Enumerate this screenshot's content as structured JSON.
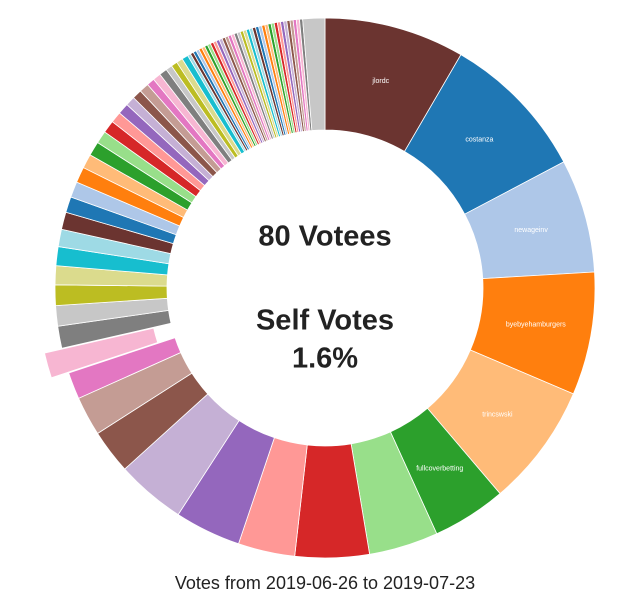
{
  "chart_data": {
    "type": "donut",
    "center_texts": [
      "80 Votees",
      "Self Votes",
      "1.6%"
    ],
    "footer": "Votes from 2019-06-26 to 2019-07-23",
    "exploded_index": 14,
    "colors": [
      "#6b3430",
      "#1f77b4",
      "#aec7e8",
      "#ff7f0e",
      "#ffbb78",
      "#2ca02c",
      "#98df8a",
      "#d62728",
      "#ff9896",
      "#9467bd",
      "#c5b0d5",
      "#8c564b",
      "#c49c94",
      "#e377c2",
      "#f7b6d2",
      "#7f7f7f",
      "#c7c7c7",
      "#bcbd22",
      "#dbdb8d",
      "#17becf",
      "#9edae5"
    ],
    "categories": [
      "jlordc",
      "costanza",
      "newageinv",
      "byebyehamburgers",
      "trincswski",
      "fullcoverbetting",
      null,
      null,
      null,
      null,
      null,
      null,
      null,
      null,
      null,
      null,
      null,
      null,
      null,
      null,
      null,
      null,
      null,
      null,
      null,
      null,
      null,
      null,
      null,
      null,
      null,
      null,
      null,
      null,
      null,
      null,
      null,
      null,
      null,
      null,
      null,
      null,
      null,
      null,
      null,
      null,
      null,
      null,
      null,
      null,
      null,
      null,
      null,
      null,
      null,
      null,
      null,
      null,
      null,
      null,
      null,
      null,
      null,
      null,
      null,
      null,
      null,
      null,
      null,
      null,
      null,
      null,
      null,
      null,
      null,
      null,
      null,
      null,
      null,
      null
    ],
    "values": [
      8.9,
      9.4,
      7.2,
      7.8,
      7.8,
      4.7,
      4.4,
      4.7,
      3.6,
      4.2,
      4.4,
      2.8,
      2.5,
      1.7,
      1.6,
      1.4,
      1.3,
      1.3,
      1.2,
      1.2,
      1.1,
      1.1,
      1.0,
      1.0,
      1.0,
      0.9,
      0.9,
      0.8,
      0.8,
      0.7,
      0.7,
      0.6,
      0.6,
      0.6,
      0.5,
      0.5,
      0.5,
      0.4,
      0.4,
      0.4,
      0.4,
      0.2,
      0.2,
      0.2,
      0.2,
      0.2,
      0.2,
      0.2,
      0.2,
      0.2,
      0.2,
      0.2,
      0.2,
      0.2,
      0.2,
      0.2,
      0.2,
      0.2,
      0.2,
      0.2,
      0.2,
      0.2,
      0.2,
      0.2,
      0.2,
      0.2,
      0.2,
      0.2,
      0.2,
      0.2,
      0.2,
      0.2,
      0.2,
      0.2,
      0.2,
      0.2,
      0.2,
      0.2,
      0.2,
      1.4
    ]
  }
}
